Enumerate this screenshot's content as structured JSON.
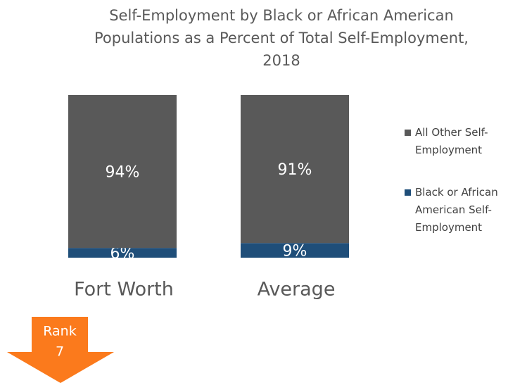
{
  "chart_data": {
    "type": "stacked_bar",
    "title": "Self-Employment by Black or African American Populations as a Percent of Total Self-Employment, 2018",
    "categories": [
      "Fort Worth",
      "Average"
    ],
    "series": [
      {
        "name": "Black or African American Self-Employment",
        "color": "#1f4e79",
        "values": [
          6,
          9
        ],
        "value_labels": [
          "6%",
          "9%"
        ]
      },
      {
        "name": "All Other Self-Employment",
        "color": "#595959",
        "values": [
          94,
          91
        ],
        "value_labels": [
          "94%",
          "91%"
        ]
      }
    ],
    "ylim": [
      0,
      100
    ],
    "legend": "right"
  },
  "badge": {
    "label": "Rank",
    "value": 7
  }
}
